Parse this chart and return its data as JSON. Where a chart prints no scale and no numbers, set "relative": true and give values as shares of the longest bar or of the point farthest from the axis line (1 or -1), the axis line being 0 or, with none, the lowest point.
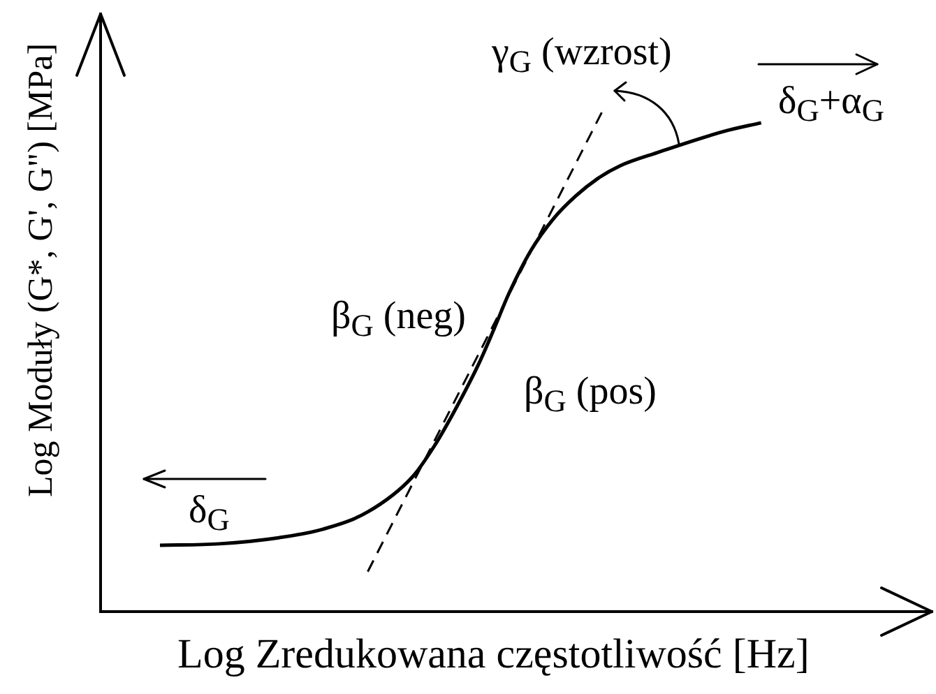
{
  "chart_data": {
    "type": "line",
    "relative": true,
    "xlabel": "Log Zredukowana częstotliwość [Hz]",
    "ylabel": "Log Moduły (G*, G', G\") [MPa]",
    "categories": [
      null,
      null,
      null,
      null,
      null,
      null,
      null,
      null,
      null,
      null,
      null,
      null,
      null,
      null,
      null,
      null,
      null,
      null,
      null,
      null,
      null,
      null,
      null,
      null,
      null,
      null,
      null,
      null,
      null,
      null,
      null,
      null,
      null,
      null,
      null,
      null,
      null,
      null,
      null,
      null,
      null,
      null,
      null,
      null,
      null,
      null,
      null,
      null,
      null,
      null,
      null,
      null,
      null,
      null,
      null,
      null,
      null,
      null,
      null,
      null,
      null,
      null,
      null,
      null,
      null,
      null,
      null,
      null,
      null,
      null,
      null,
      null,
      null,
      null,
      null,
      null,
      null,
      null,
      null,
      null,
      null,
      null,
      null,
      null,
      null,
      null,
      null,
      null,
      null,
      null,
      null,
      null,
      null,
      null,
      null,
      null,
      null,
      null,
      null,
      null,
      null,
      null,
      null,
      null,
      null,
      null,
      null,
      null,
      null,
      null,
      null,
      null,
      null
    ],
    "series": [
      {
        "color": "#000000",
        "line_style": "solid",
        "values": [
          null,
          null,
          null,
          null,
          null,
          null,
          null,
          null,
          0.131,
          null,
          null,
          null,
          null,
          null,
          null,
          null,
          0.134,
          null,
          null,
          null,
          null,
          null,
          null,
          null,
          0.146,
          null,
          null,
          null,
          null,
          null,
          0.163,
          null,
          null,
          null,
          null,
          null,
          0.197,
          null,
          null,
          null,
          null,
          null,
          0.266,
          null,
          null,
          0.328,
          null,
          null,
          0.405,
          null,
          null,
          0.491,
          null,
          0.558,
          null,
          0.628,
          null,
          null,
          0.714,
          null,
          null,
          0.776,
          null,
          null,
          0.821,
          null,
          null,
          0.856,
          null,
          null,
          0.881,
          null,
          null,
          null,
          null,
          0.907,
          null,
          null,
          null,
          null,
          null,
          null,
          null,
          null,
          0.949,
          null,
          null,
          null,
          null,
          0.966,
          null,
          null,
          null,
          null,
          null,
          null,
          null,
          null,
          null,
          null,
          null,
          null,
          null,
          null,
          null,
          null,
          null,
          null,
          null,
          null,
          null,
          null,
          null
        ]
      },
      {
        "color": "#000000",
        "line_style": "dashed",
        "values": [
          null,
          null,
          null,
          null,
          null,
          null,
          null,
          null,
          null,
          null,
          null,
          null,
          null,
          null,
          null,
          null,
          null,
          null,
          null,
          null,
          null,
          null,
          null,
          null,
          null,
          null,
          null,
          null,
          null,
          null,
          null,
          null,
          null,
          null,
          null,
          null,
          0.079,
          null,
          null,
          null,
          null,
          null,
          null,
          null,
          null,
          null,
          null,
          null,
          null,
          null,
          null,
          null,
          null,
          null,
          null,
          null,
          null,
          null,
          null,
          null,
          null,
          null,
          null,
          null,
          null,
          null,
          null,
          null,
          1,
          null,
          null,
          null,
          null,
          null,
          null,
          null,
          null,
          null,
          null,
          null,
          null,
          null,
          null,
          null,
          null,
          null,
          null,
          null,
          null,
          null,
          null,
          null,
          null,
          null,
          null,
          null,
          null,
          null,
          null,
          null,
          null,
          null,
          null,
          null,
          null,
          null,
          null,
          null,
          null,
          null,
          null,
          null,
          null
        ]
      }
    ],
    "annotations": [
      "γ$_{G}$ (wzrost)",
      "δ$_{G}$+α$_{G}$",
      "β$_{G}$ (neg)",
      "β$_{G}$ (pos)",
      "δ$_{G}$"
    ]
  }
}
